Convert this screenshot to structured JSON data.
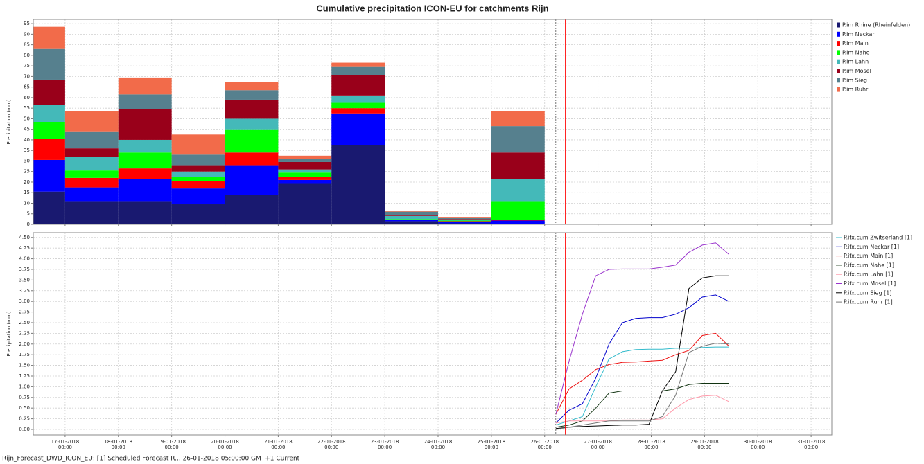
{
  "title": "Cumulative precipitation ICON-EU for catchments Rijn",
  "footer": "Rijn_Forecast_DWD_ICON_EU: [1] Scheduled Forecast R... 26-01-2018 05:00:00 GMT+1 Current",
  "chart_data": [
    {
      "type": "bar",
      "stacked": true,
      "y_label": "Precipitation (mm)",
      "x": [
        "16-01-2018 00:00",
        "17-01-2018 00:00",
        "18-01-2018 00:00",
        "19-01-2018 00:00",
        "20-01-2018 00:00",
        "21-01-2018 00:00",
        "22-01-2018 00:00",
        "23-01-2018 00:00",
        "24-01-2018 00:00",
        "25-01-2018 00:00"
      ],
      "series": [
        {
          "name": "P.im Rhine (Rheinfelden)",
          "color": "#191970",
          "values": [
            15.5,
            11,
            11,
            9.5,
            14,
            19.5,
            37.5,
            1.5,
            0.5,
            0.3
          ]
        },
        {
          "name": "P.im Neckar",
          "color": "#0000ff",
          "values": [
            15,
            6.5,
            10.5,
            7.5,
            14,
            1.5,
            15,
            0.5,
            0.5,
            1.5
          ]
        },
        {
          "name": "P.im Main",
          "color": "#ff0000",
          "values": [
            10,
            4.5,
            5,
            3.5,
            6,
            1.5,
            2.5,
            0.3,
            0.5,
            0.2
          ]
        },
        {
          "name": "P.im Nahe",
          "color": "#00ff00",
          "values": [
            8,
            3.5,
            7.5,
            2,
            11,
            2,
            2.5,
            0.2,
            0.3,
            9
          ]
        },
        {
          "name": "P.im Lahn",
          "color": "#44b9b9",
          "values": [
            8,
            6.5,
            6,
            2.5,
            5,
            1.5,
            3.5,
            1.5,
            0.2,
            10.5
          ]
        },
        {
          "name": "P.im Mosel",
          "color": "#99001a",
          "values": [
            12,
            4,
            14.5,
            3,
            9,
            3.5,
            9.5,
            0.5,
            0.5,
            12.5
          ]
        },
        {
          "name": "P.im Sieg",
          "color": "#56808e",
          "values": [
            14.5,
            8,
            7,
            5,
            4.5,
            1.5,
            4,
            1.5,
            0.5,
            12.5
          ]
        },
        {
          "name": "P.im Ruhr",
          "color": "#f26b4a",
          "values": [
            10.5,
            9.5,
            8,
            9.5,
            4,
            1.5,
            2,
            0.5,
            0.5,
            7
          ]
        }
      ],
      "xlim": [
        "16-01-2018 09:40",
        "31-01-2018 09:20"
      ],
      "xticks": [
        "17-01-2018 00:00",
        "18-01-2018 00:00",
        "19-01-2018 00:00",
        "20-01-2018 00:00",
        "21-01-2018 00:00",
        "22-01-2018 00:00",
        "23-01-2018 00:00",
        "24-01-2018 00:00",
        "25-01-2018 00:00",
        "26-01-2018 00:00",
        "27-01-2018 00:00",
        "28-01-2018 00:00",
        "29-01-2018 00:00",
        "30-01-2018 00:00",
        "31-01-2018 00:00"
      ],
      "ylim": [
        0,
        97
      ],
      "yticks": [
        0,
        5,
        10,
        15,
        20,
        25,
        30,
        35,
        40,
        45,
        50,
        55,
        60,
        65,
        70,
        75,
        80,
        85,
        90,
        95
      ],
      "markers": [
        {
          "x": "26-01-2018 05:00",
          "color": "#777777",
          "style": "dotted"
        },
        {
          "x": "26-01-2018 09:20",
          "color": "#ff0000",
          "style": "solid"
        }
      ],
      "grid": true
    },
    {
      "type": "line",
      "y_label": "Precipitation (mm)",
      "x": [
        "26-01-2018 05:00",
        "26-01-2018 11:00",
        "26-01-2018 17:00",
        "26-01-2018 23:00",
        "27-01-2018 05:00",
        "27-01-2018 11:00",
        "27-01-2018 17:00",
        "27-01-2018 23:00",
        "28-01-2018 05:00",
        "28-01-2018 11:00",
        "28-01-2018 17:00",
        "28-01-2018 23:00",
        "29-01-2018 05:00",
        "29-01-2018 11:00"
      ],
      "series": [
        {
          "name": "P.ifx.cum Zwitserland [1]",
          "color": "#33bbcc",
          "values": [
            0.1,
            0.2,
            0.3,
            1.0,
            1.65,
            1.82,
            1.87,
            1.88,
            1.88,
            1.9,
            1.9,
            1.92,
            1.93,
            1.93
          ]
        },
        {
          "name": "P.ifx.cum Neckar [1]",
          "color": "#0000cc",
          "values": [
            0.15,
            0.45,
            0.6,
            1.2,
            2.0,
            2.5,
            2.6,
            2.62,
            2.62,
            2.7,
            2.85,
            3.1,
            3.15,
            3.0
          ]
        },
        {
          "name": "P.ifx.cum Main [1]",
          "color": "#ee1111",
          "values": [
            0.35,
            0.95,
            1.15,
            1.4,
            1.52,
            1.57,
            1.58,
            1.6,
            1.62,
            1.75,
            1.85,
            2.2,
            2.25,
            1.95
          ]
        },
        {
          "name": "P.ifx.cum Nahe [1]",
          "color": "#113311",
          "values": [
            0.05,
            0.1,
            0.2,
            0.5,
            0.85,
            0.9,
            0.9,
            0.9,
            0.9,
            0.95,
            1.05,
            1.08,
            1.08,
            1.08
          ]
        },
        {
          "name": "P.ifx.cum Lahn [1]",
          "color": "#ff99aa",
          "values": [
            0.15,
            0.2,
            0.2,
            0.2,
            0.2,
            0.22,
            0.22,
            0.22,
            0.25,
            0.5,
            0.7,
            0.78,
            0.8,
            0.65
          ]
        },
        {
          "name": "P.ifx.cum Mosel [1]",
          "color": "#9933cc",
          "values": [
            0.35,
            1.6,
            2.7,
            3.6,
            3.75,
            3.76,
            3.76,
            3.76,
            3.8,
            3.85,
            4.15,
            4.32,
            4.37,
            4.1
          ]
        },
        {
          "name": "P.ifx.cum Sieg [1]",
          "color": "#000000",
          "values": [
            0.02,
            0.05,
            0.07,
            0.08,
            0.09,
            0.1,
            0.1,
            0.12,
            0.9,
            1.35,
            3.3,
            3.55,
            3.6,
            3.6
          ]
        },
        {
          "name": "P.ifx.cum Ruhr [1]",
          "color": "#777777",
          "values": [
            0.0,
            0.05,
            0.1,
            0.15,
            0.2,
            0.2,
            0.2,
            0.2,
            0.3,
            0.8,
            1.8,
            1.95,
            2.02,
            2.0
          ]
        }
      ],
      "xlim": [
        "16-01-2018 09:40",
        "31-01-2018 09:20"
      ],
      "xticks": [
        {
          "value": "17-01-2018 00:00",
          "label": [
            "17-01-2018",
            "00:00"
          ]
        },
        {
          "value": "18-01-2018 00:00",
          "label": [
            "18-01-2018",
            "00:00"
          ]
        },
        {
          "value": "19-01-2018 00:00",
          "label": [
            "19-01-2018",
            "00:00"
          ]
        },
        {
          "value": "20-01-2018 00:00",
          "label": [
            "20-01-2018",
            "00:00"
          ]
        },
        {
          "value": "21-01-2018 00:00",
          "label": [
            "21-01-2018",
            "00:00"
          ]
        },
        {
          "value": "22-01-2018 00:00",
          "label": [
            "22-01-2018",
            "00:00"
          ]
        },
        {
          "value": "23-01-2018 00:00",
          "label": [
            "23-01-2018",
            "00:00"
          ]
        },
        {
          "value": "24-01-2018 00:00",
          "label": [
            "24-01-2018",
            "00:00"
          ]
        },
        {
          "value": "25-01-2018 00:00",
          "label": [
            "25-01-2018",
            "00:00"
          ]
        },
        {
          "value": "26-01-2018 00:00",
          "label": [
            "26-01-2018",
            "00:00"
          ]
        },
        {
          "value": "27-01-2018 00:00",
          "label": [
            "27-01-2018",
            "00:00"
          ]
        },
        {
          "value": "28-01-2018 00:00",
          "label": [
            "28-01-2018",
            "00:00"
          ]
        },
        {
          "value": "29-01-2018 00:00",
          "label": [
            "29-01-2018",
            "00:00"
          ]
        },
        {
          "value": "30-01-2018 00:00",
          "label": [
            "30-01-2018",
            "00:00"
          ]
        },
        {
          "value": "31-01-2018 00:00",
          "label": [
            "31-01-2018",
            "00:00"
          ]
        }
      ],
      "ylim": [
        -0.13,
        4.61
      ],
      "yticks": [
        {
          "value": 0,
          "label": "0.00"
        },
        {
          "value": 0.25,
          "label": "0.25"
        },
        {
          "value": 0.5,
          "label": "0.50"
        },
        {
          "value": 0.75,
          "label": "0.75"
        },
        {
          "value": 1,
          "label": "1.00"
        },
        {
          "value": 1.25,
          "label": "1.25"
        },
        {
          "value": 1.5,
          "label": "1.50"
        },
        {
          "value": 1.75,
          "label": "1.75"
        },
        {
          "value": 2,
          "label": "2.00"
        },
        {
          "value": 2.25,
          "label": "2.25"
        },
        {
          "value": 2.5,
          "label": "2.50"
        },
        {
          "value": 2.75,
          "label": "2.75"
        },
        {
          "value": 3,
          "label": "3.00"
        },
        {
          "value": 3.25,
          "label": "3.25"
        },
        {
          "value": 3.5,
          "label": "3.50"
        },
        {
          "value": 3.75,
          "label": "3.75"
        },
        {
          "value": 4,
          "label": "4.00"
        },
        {
          "value": 4.25,
          "label": "4.25"
        },
        {
          "value": 4.5,
          "label": "4.50"
        }
      ],
      "markers": [
        {
          "x": "26-01-2018 05:00",
          "color": "#777777",
          "style": "dotted"
        },
        {
          "x": "26-01-2018 09:20",
          "color": "#ff0000",
          "style": "solid"
        }
      ],
      "grid": true
    }
  ]
}
